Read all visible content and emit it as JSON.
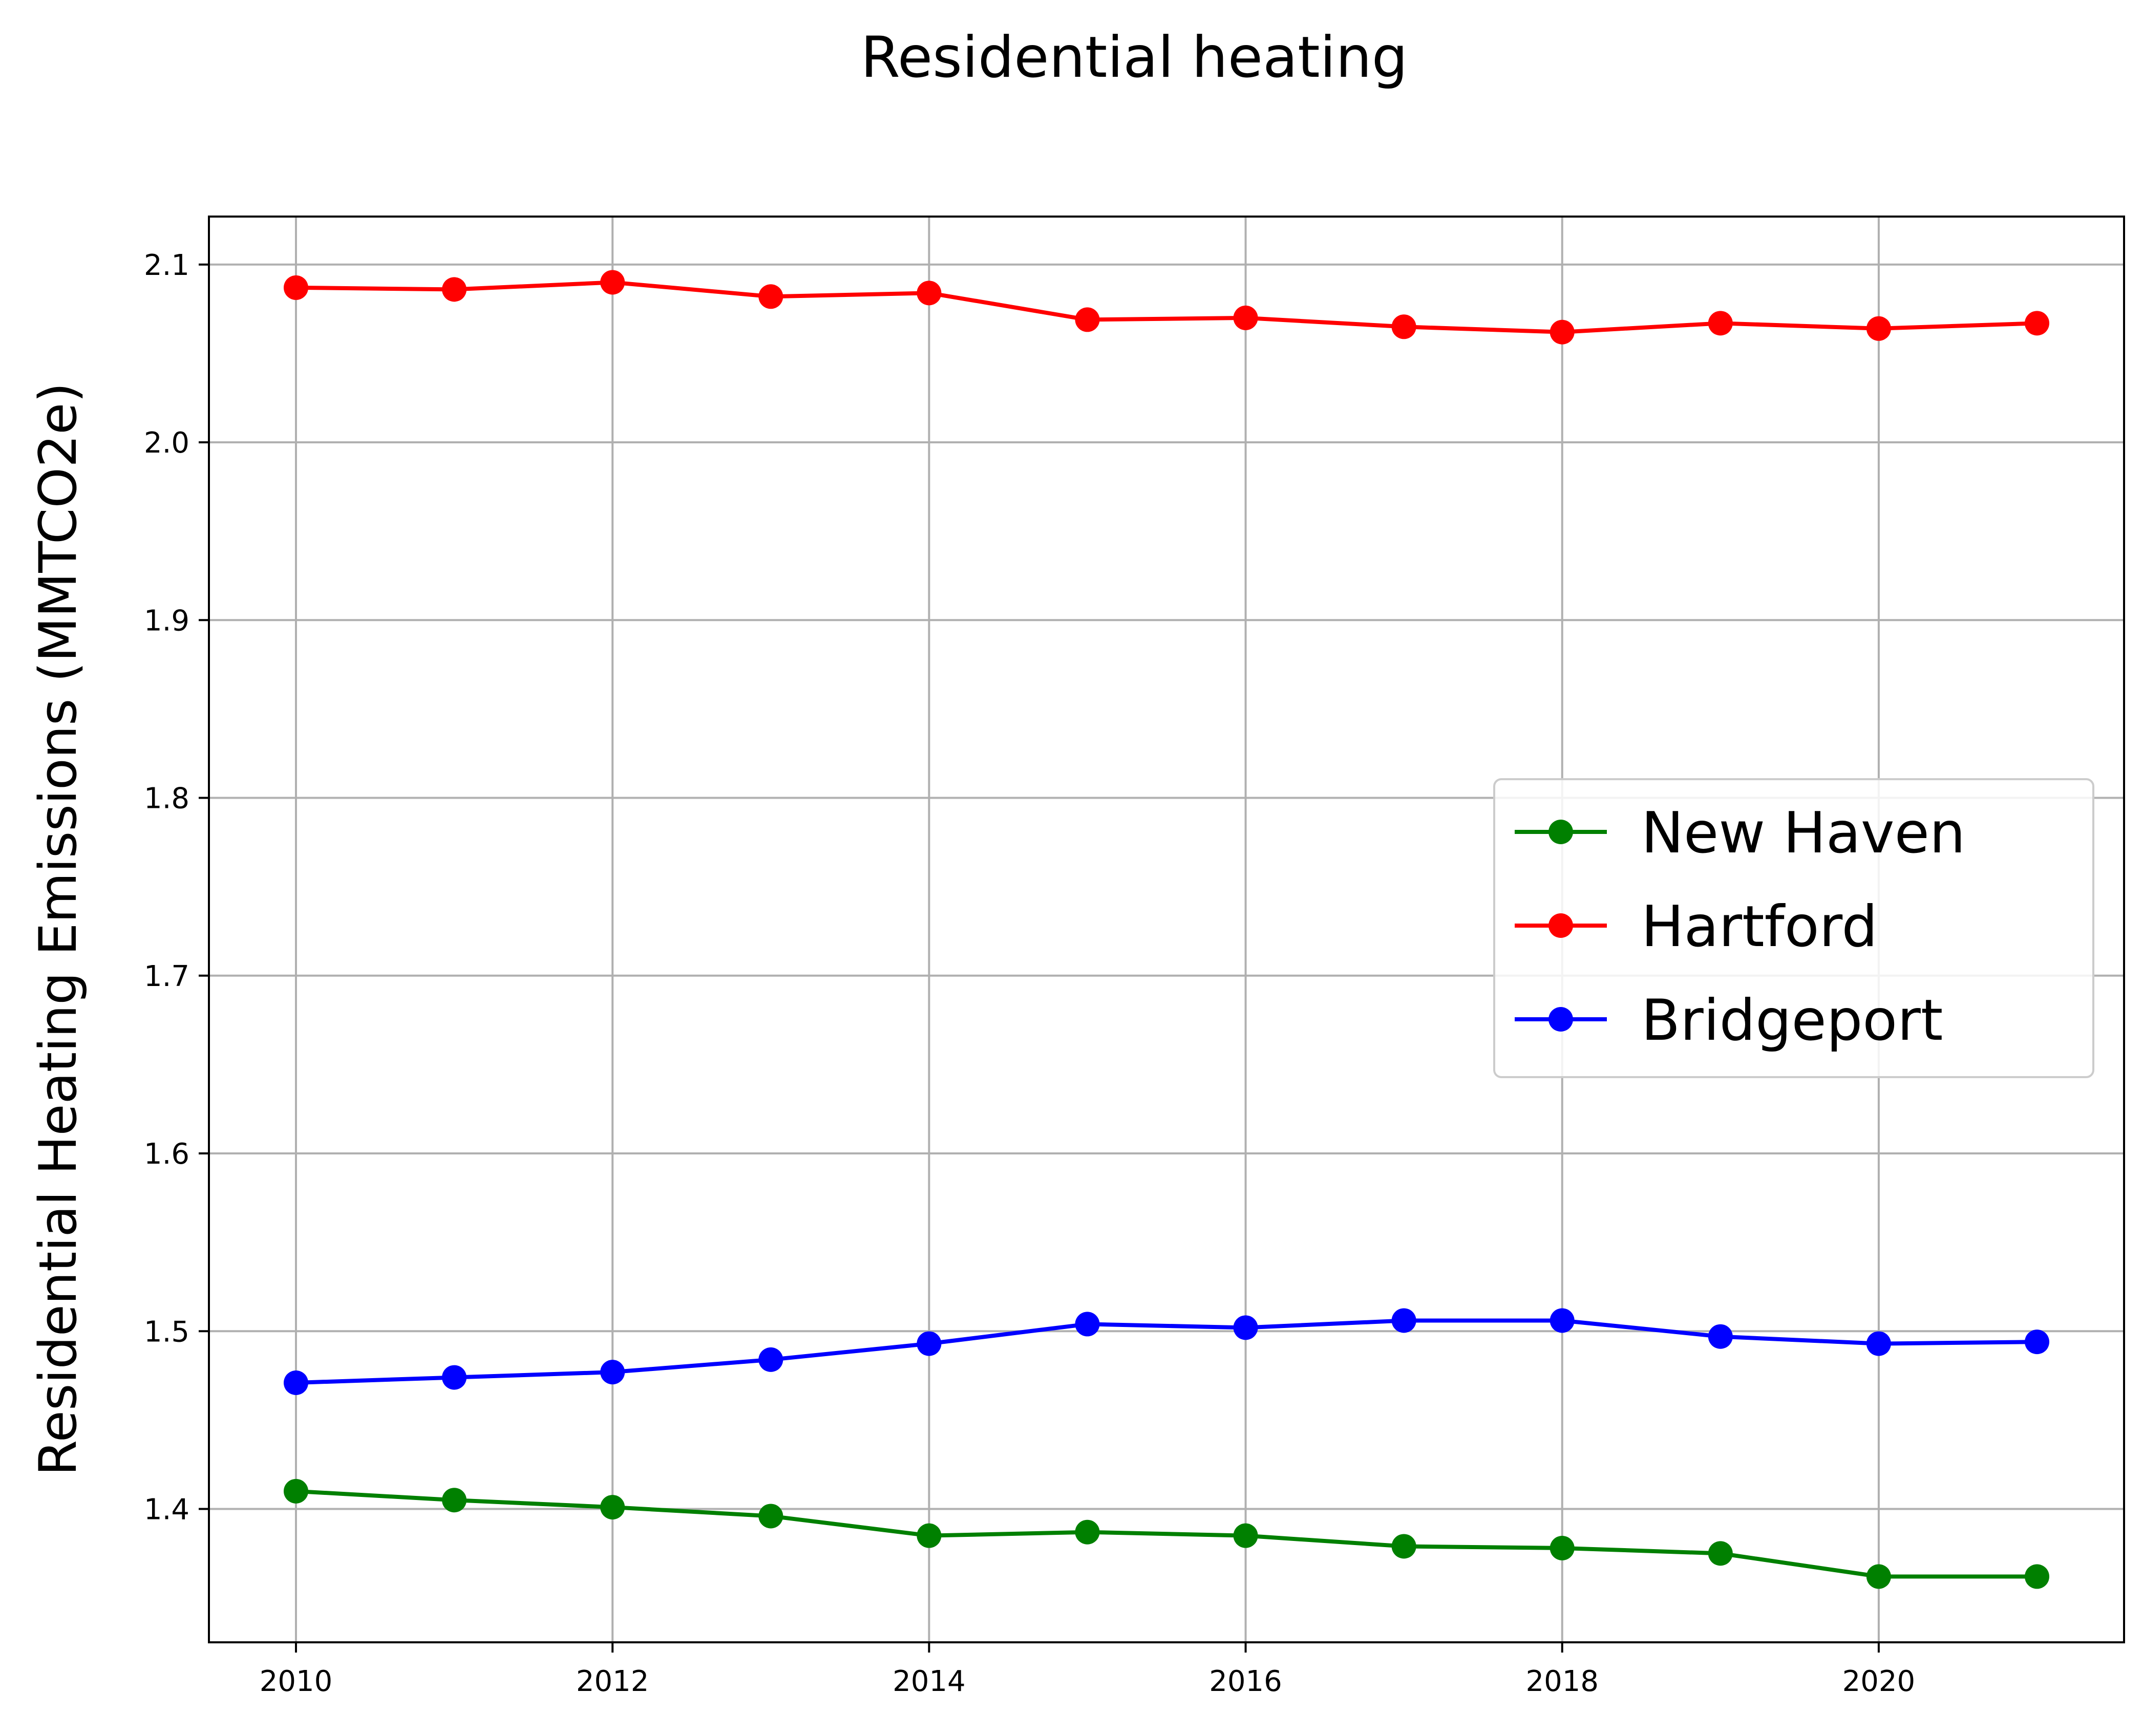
{
  "chart_data": {
    "type": "line",
    "title": "Residential heating",
    "xlabel": "",
    "ylabel": "Residential Heating Emissions (MMTCO2e)",
    "x": [
      2010,
      2011,
      2012,
      2013,
      2014,
      2015,
      2016,
      2017,
      2018,
      2019,
      2020,
      2021
    ],
    "xlim": [
      2009.45,
      2021.55
    ],
    "ylim": [
      1.325,
      2.127
    ],
    "xticks": [
      2010,
      2012,
      2014,
      2016,
      2018,
      2020
    ],
    "yticks": [
      1.4,
      1.5,
      1.6,
      1.7,
      1.8,
      1.9,
      2.0,
      2.1
    ],
    "grid": true,
    "legend_position": "center-right",
    "series": [
      {
        "name": "New Haven",
        "color": "#008000",
        "values": [
          1.41,
          1.405,
          1.401,
          1.396,
          1.385,
          1.387,
          1.385,
          1.379,
          1.378,
          1.375,
          1.362,
          1.362
        ]
      },
      {
        "name": "Hartford",
        "color": "#ff0000",
        "values": [
          2.087,
          2.086,
          2.09,
          2.082,
          2.084,
          2.069,
          2.07,
          2.065,
          2.062,
          2.067,
          2.064,
          2.067
        ]
      },
      {
        "name": "Bridgeport",
        "color": "#0000ff",
        "values": [
          1.471,
          1.474,
          1.477,
          1.484,
          1.493,
          1.504,
          1.502,
          1.506,
          1.506,
          1.497,
          1.493,
          1.494
        ]
      }
    ]
  }
}
